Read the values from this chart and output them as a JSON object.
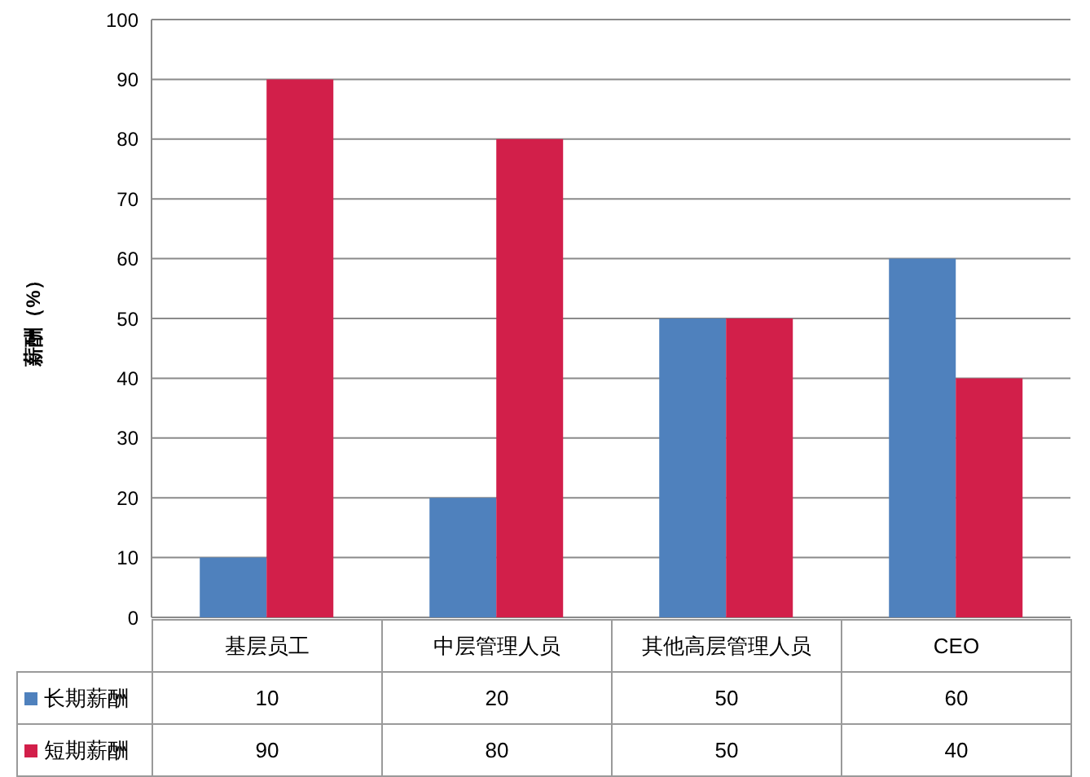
{
  "chart_data": {
    "type": "bar",
    "ylabel": "薪酬（%）",
    "categories": [
      "基层员工",
      "中层管理人员",
      "其他高层管理人员",
      "CEO"
    ],
    "series": [
      {
        "name": "长期薪酬",
        "color": "#4f81bd",
        "values": [
          10,
          20,
          50,
          60
        ]
      },
      {
        "name": "短期薪酬",
        "color": "#d21f4a",
        "values": [
          90,
          80,
          50,
          40
        ]
      }
    ],
    "ylim": [
      0,
      100
    ],
    "yticks": [
      0,
      10,
      20,
      30,
      40,
      50,
      60,
      70,
      80,
      90,
      100
    ],
    "grid": "y",
    "legend": "bottom",
    "data_labels": true
  }
}
